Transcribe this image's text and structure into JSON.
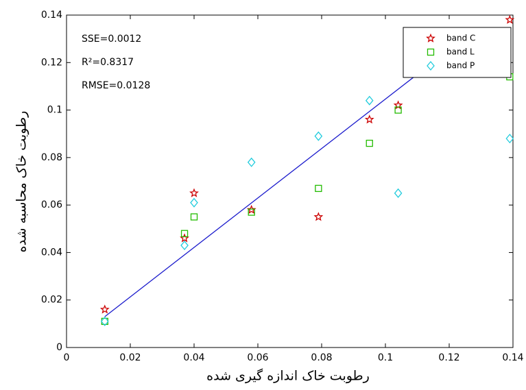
{
  "chart_data": {
    "type": "scatter",
    "x_label": "رطوبت خاک اندازه گیری شده",
    "y_label": "رطوبت خاک محاسبه شده",
    "annotations": [
      "SSE=0.0012",
      "R²=0.8317",
      "RMSE=0.0128"
    ],
    "xlim": [
      0,
      0.14
    ],
    "xticks": [
      0,
      0.02,
      0.04,
      0.06,
      0.08,
      0.1,
      0.12,
      0.14
    ],
    "ylim": [
      0,
      0.14
    ],
    "yticks": [
      0,
      0.02,
      0.04,
      0.06,
      0.08,
      0.1,
      0.12,
      0.14
    ],
    "legend_position": "upper right",
    "series": [
      {
        "name": "band C",
        "color": "#cc0000",
        "marker": "star",
        "x": [
          0.012,
          0.037,
          0.04,
          0.058,
          0.079,
          0.095,
          0.104,
          0.139
        ],
        "values": [
          0.016,
          0.046,
          0.065,
          0.058,
          0.055,
          0.096,
          0.102,
          0.138
        ]
      },
      {
        "name": "band L",
        "color": "#22bb00",
        "marker": "square",
        "x": [
          0.012,
          0.037,
          0.04,
          0.058,
          0.079,
          0.095,
          0.104,
          0.139
        ],
        "values": [
          0.011,
          0.048,
          0.055,
          0.057,
          0.067,
          0.086,
          0.1,
          0.114
        ]
      },
      {
        "name": "band P",
        "color": "#22ccdd",
        "marker": "diamond",
        "x": [
          0.012,
          0.037,
          0.04,
          0.058,
          0.079,
          0.095,
          0.104,
          0.139
        ],
        "values": [
          0.011,
          0.043,
          0.061,
          0.078,
          0.089,
          0.104,
          0.065,
          0.088
        ]
      }
    ],
    "fit_line": {
      "color": "#1a1acc",
      "x": [
        0.012,
        0.109
      ],
      "values": [
        0.013,
        0.114
      ]
    }
  }
}
